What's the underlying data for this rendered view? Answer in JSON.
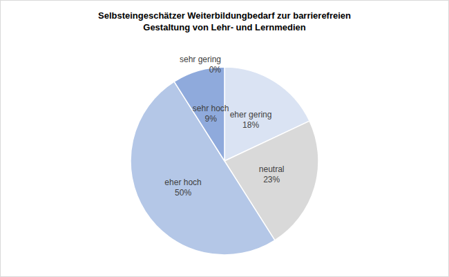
{
  "chart_data": {
    "type": "pie",
    "title": "Selbsteingeschätzer Weiterbildungbedarf zur barrierefreien\nGestaltung von Lehr- und Lernmedien",
    "categories": [
      "sehr gering",
      "eher gering",
      "neutral",
      "eher hoch",
      "sehr hoch"
    ],
    "values": [
      0,
      18,
      23,
      50,
      9
    ],
    "value_labels": [
      "0%",
      "18%",
      "23%",
      "50%",
      "9%"
    ],
    "colors": [
      "#c9d7ef",
      "#dae3f3",
      "#d9d9d9",
      "#b4c7e7",
      "#8faadc"
    ],
    "data_labels": true
  }
}
